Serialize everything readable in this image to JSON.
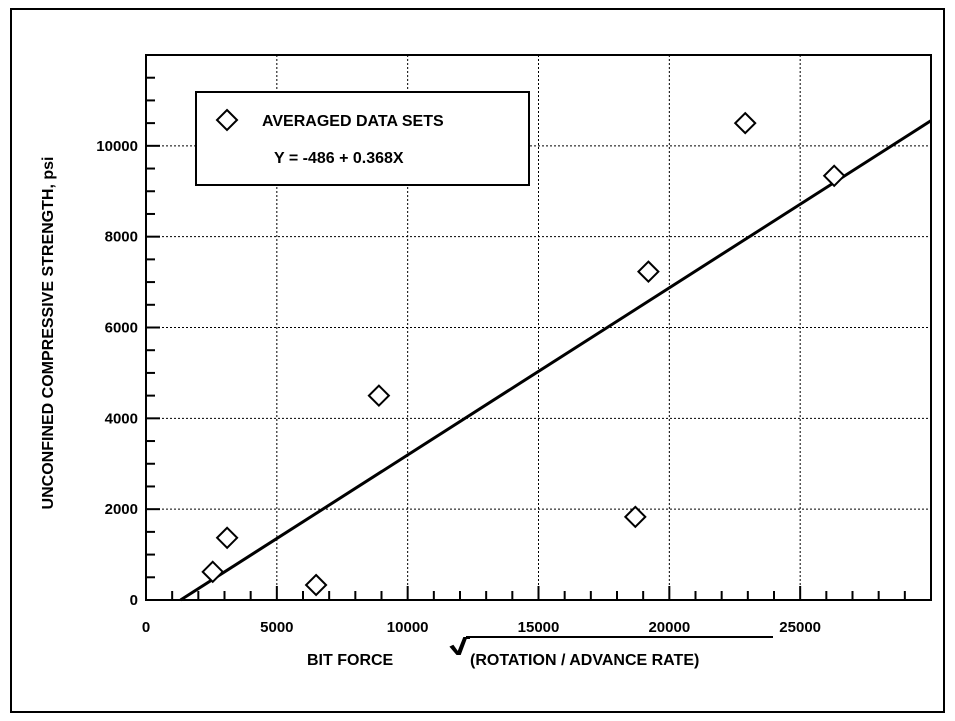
{
  "chart_data": {
    "type": "scatter",
    "xlabel": "BIT FORCE",
    "xlabel_radical": "(ROTATION / ADVANCE RATE)",
    "ylabel": "UNCONFINED COMPRESSIVE STRENGTH, psi",
    "xlim": [
      0,
      30000
    ],
    "ylim": [
      0,
      12000
    ],
    "x_ticks": [
      0,
      5000,
      10000,
      15000,
      20000,
      25000
    ],
    "y_ticks": [
      0,
      2000,
      4000,
      6000,
      8000,
      10000
    ],
    "grid": true,
    "legend": {
      "position": "top-left",
      "marker": "diamond",
      "label": "AVERAGED DATA SETS",
      "equation": "Y = -486 + 0.368X"
    },
    "series": [
      {
        "name": "AVERAGED DATA SETS",
        "marker": "diamond",
        "points": [
          {
            "x": 2550,
            "y": 620
          },
          {
            "x": 3100,
            "y": 1370
          },
          {
            "x": 6500,
            "y": 330
          },
          {
            "x": 8900,
            "y": 4500
          },
          {
            "x": 18700,
            "y": 1830
          },
          {
            "x": 19200,
            "y": 7230
          },
          {
            "x": 22900,
            "y": 10500
          },
          {
            "x": 26300,
            "y": 9340
          }
        ]
      }
    ],
    "fit_line": {
      "intercept": -486,
      "slope": 0.368,
      "x_range": [
        1320,
        30000
      ]
    }
  }
}
